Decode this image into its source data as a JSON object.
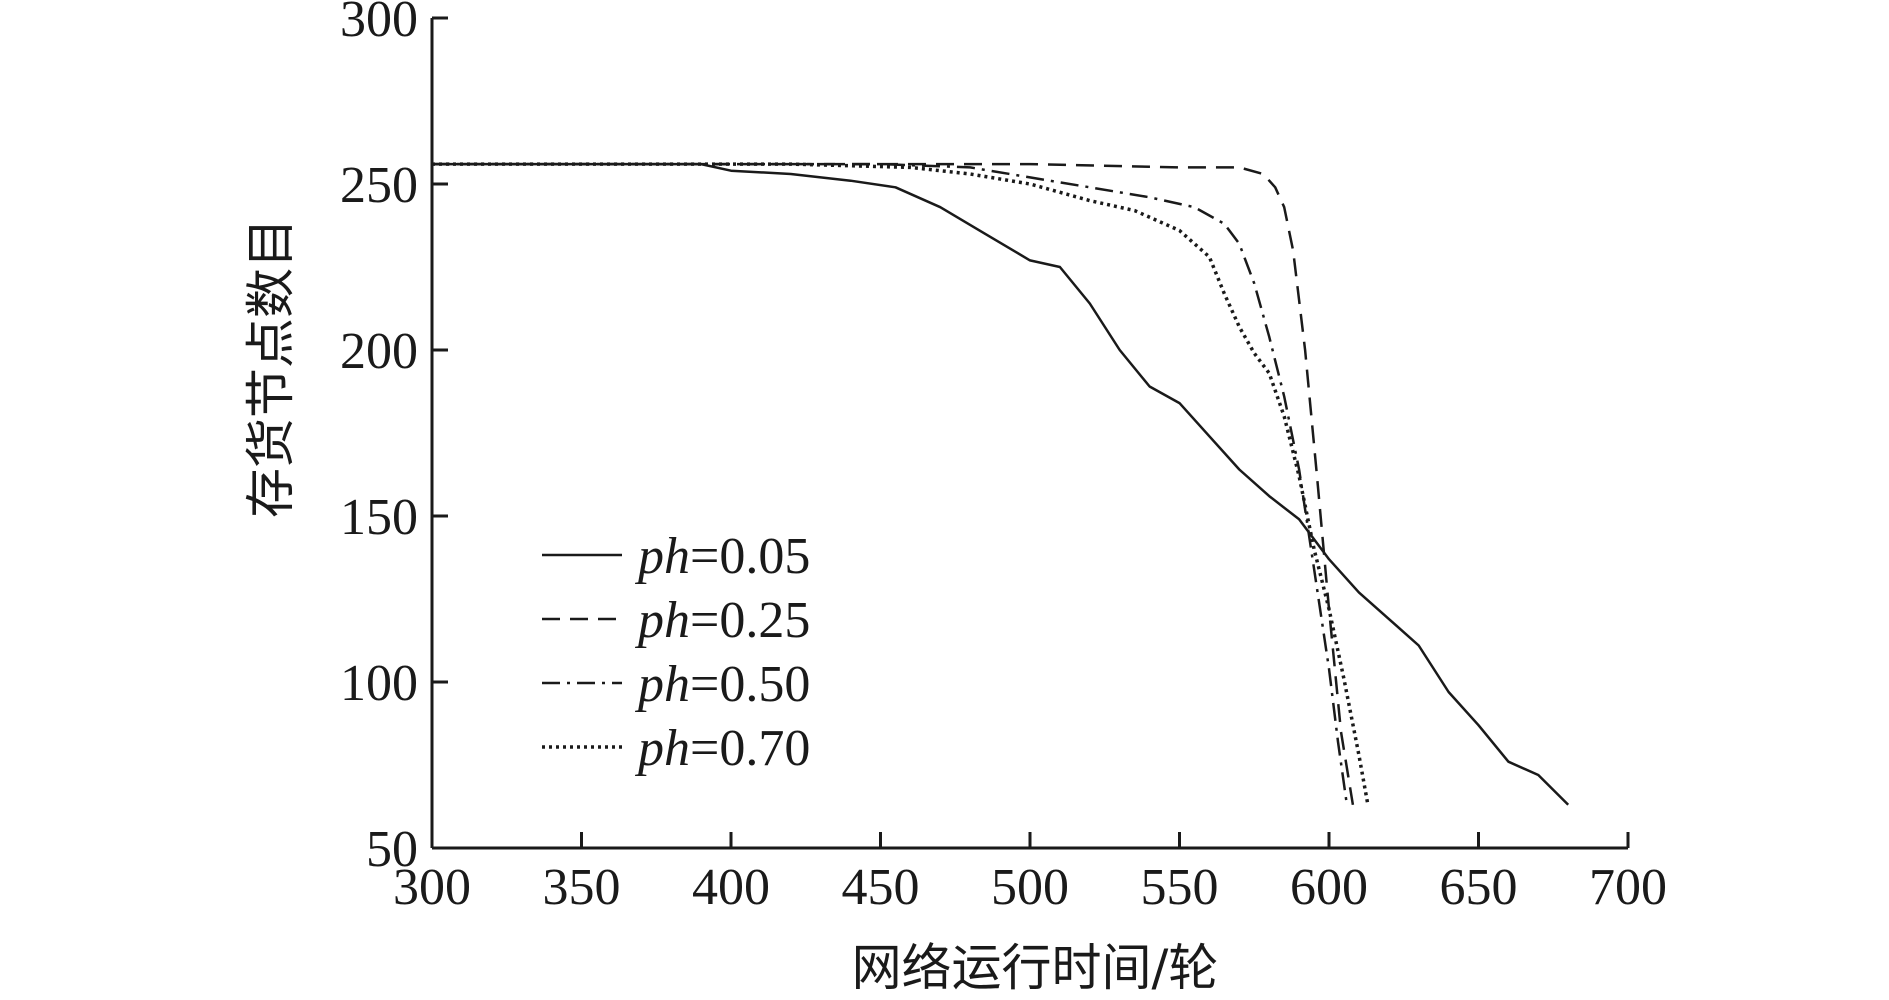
{
  "chart_data": {
    "type": "line",
    "xlabel": "网络运行时间/轮",
    "ylabel": "存货节点数目",
    "xlim": [
      300,
      700
    ],
    "ylim": [
      50,
      300
    ],
    "xticks": [
      "300",
      "350",
      "400",
      "450",
      "500",
      "550",
      "600",
      "650",
      "700"
    ],
    "yticks": [
      "50",
      "100",
      "150",
      "200",
      "250",
      "300"
    ],
    "grid": false,
    "legend_position": "left",
    "series": [
      {
        "name_var": "ph",
        "name_val": "=0.05",
        "dash": "solid",
        "color": "#1a1a1a",
        "x": [
          300,
          390,
          400,
          420,
          440,
          455,
          470,
          485,
          500,
          510,
          520,
          530,
          540,
          550,
          560,
          570,
          580,
          590,
          600,
          610,
          620,
          630,
          640,
          650,
          660,
          670,
          680
        ],
        "y": [
          256,
          256,
          254,
          253,
          251,
          249,
          243,
          235,
          227,
          225,
          214,
          200,
          189,
          184,
          174,
          164,
          156,
          149,
          137,
          127,
          119,
          111,
          97,
          87,
          76,
          72,
          63
        ]
      },
      {
        "name_var": "ph",
        "name_val": "=0.25",
        "dash": "dashed",
        "color": "#1a1a1a",
        "x": [
          300,
          500,
          550,
          570,
          578,
          582,
          585,
          588,
          592,
          596,
          600,
          604,
          608
        ],
        "y": [
          256,
          256,
          255,
          255,
          253,
          249,
          243,
          230,
          200,
          162,
          122,
          85,
          63
        ]
      },
      {
        "name_var": "ph",
        "name_val": "=0.50",
        "dash": "dashdot",
        "color": "#1a1a1a",
        "x": [
          300,
          450,
          480,
          500,
          520,
          540,
          555,
          565,
          570,
          575,
          580,
          585,
          590,
          595,
          600,
          603,
          606
        ],
        "y": [
          256,
          256,
          255,
          252,
          249,
          246,
          243,
          238,
          232,
          220,
          204,
          186,
          164,
          134,
          104,
          82,
          63
        ]
      },
      {
        "name_var": "ph",
        "name_val": "=0.70",
        "dash": "dotted",
        "color": "#1a1a1a",
        "x": [
          300,
          420,
          460,
          480,
          500,
          520,
          535,
          550,
          560,
          565,
          570,
          575,
          580,
          585,
          590,
          595,
          600,
          605,
          610,
          613
        ],
        "y": [
          256,
          256,
          255,
          253,
          250,
          245,
          242,
          236,
          228,
          217,
          207,
          199,
          193,
          180,
          162,
          140,
          122,
          101,
          78,
          63
        ]
      }
    ]
  }
}
